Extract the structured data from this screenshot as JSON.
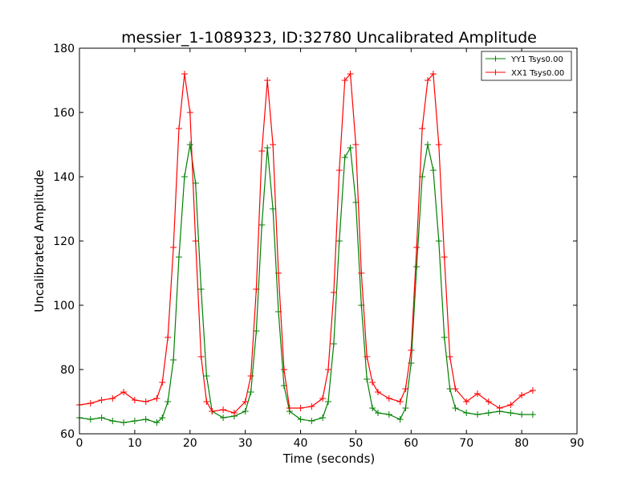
{
  "chart_data": {
    "type": "line",
    "title": "messier_1-1089323, ID:32780 Uncalibrated Amplitude",
    "xlabel": "Time (seconds)",
    "ylabel": "Uncalibrated Amplitude",
    "xlim": [
      0,
      90
    ],
    "ylim": [
      60,
      180
    ],
    "xticks": [
      "0",
      "10",
      "20",
      "30",
      "40",
      "50",
      "60",
      "70",
      "80",
      "90"
    ],
    "yticks": [
      "60",
      "80",
      "100",
      "120",
      "140",
      "160",
      "180"
    ],
    "grid": false,
    "legend_position": "top-right",
    "marker": "+",
    "series": [
      {
        "name": "YY1 Tsys0.00",
        "color": "#008000",
        "x": [
          0,
          2,
          4,
          6,
          8,
          10,
          12,
          14,
          15,
          16,
          17,
          18,
          19,
          20,
          21,
          22,
          23,
          24,
          26,
          28,
          30,
          31,
          32,
          33,
          34,
          35,
          36,
          37,
          38,
          40,
          42,
          44,
          45,
          46,
          47,
          48,
          49,
          50,
          51,
          52,
          53,
          54,
          56,
          58,
          59,
          60,
          61,
          62,
          63,
          64,
          65,
          66,
          67,
          68,
          70,
          72,
          74,
          76,
          78,
          80,
          82
        ],
        "y": [
          65,
          64.5,
          65,
          64,
          63.5,
          64,
          64.5,
          63.5,
          65,
          70,
          83,
          115,
          140,
          150,
          138,
          105,
          78,
          67,
          65,
          65.5,
          67,
          73,
          92,
          125,
          149,
          130,
          98,
          75,
          67,
          64.5,
          64,
          65,
          70,
          88,
          120,
          146,
          149,
          132,
          100,
          77,
          68,
          66.5,
          66,
          64.5,
          68,
          82,
          112,
          140,
          150,
          142,
          120,
          90,
          74,
          68,
          66.5,
          66,
          66.5,
          67,
          66.5,
          66,
          66
        ]
      },
      {
        "name": "XX1 Tsys0.00",
        "color": "#ff0000",
        "x": [
          0,
          2,
          4,
          6,
          8,
          10,
          12,
          14,
          15,
          16,
          17,
          18,
          19,
          20,
          21,
          22,
          23,
          24,
          26,
          28,
          30,
          31,
          32,
          33,
          34,
          35,
          36,
          37,
          38,
          40,
          42,
          44,
          45,
          46,
          47,
          48,
          49,
          50,
          51,
          52,
          53,
          54,
          56,
          58,
          59,
          60,
          61,
          62,
          63,
          64,
          65,
          66,
          67,
          68,
          70,
          72,
          74,
          76,
          78,
          80,
          82
        ],
        "y": [
          69,
          69.5,
          70.5,
          71,
          73,
          70.5,
          70,
          71,
          76,
          90,
          118,
          155,
          172,
          160,
          120,
          84,
          70,
          67,
          67.5,
          66.5,
          70,
          78,
          105,
          148,
          170,
          150,
          110,
          80,
          68,
          68,
          68.5,
          71,
          80,
          104,
          142,
          170,
          172,
          150,
          110,
          84,
          76,
          73,
          71,
          70,
          74,
          86,
          118,
          155,
          170,
          172,
          150,
          115,
          84,
          74,
          70,
          72.5,
          70,
          68,
          69,
          72,
          73.5
        ]
      }
    ]
  }
}
